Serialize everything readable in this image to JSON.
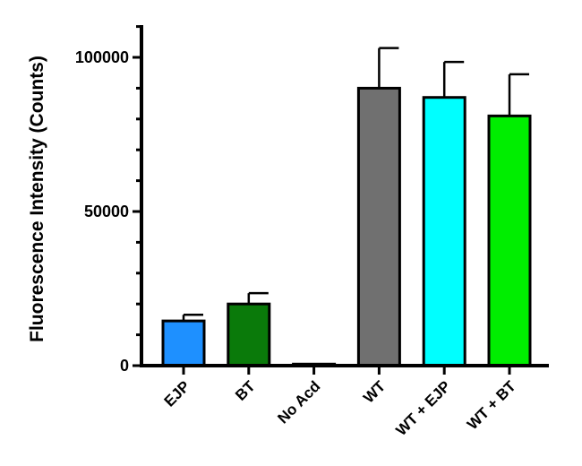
{
  "chart_data": {
    "type": "bar",
    "title": "",
    "xlabel": "",
    "ylabel": "Fluorescence Intensity (Counts)",
    "ylim": [
      0,
      110000
    ],
    "yticks": [
      0,
      50000,
      100000
    ],
    "ytick_labels": [
      "0",
      "50000",
      "100000"
    ],
    "grid": false,
    "legend": "none",
    "categories": [
      "EJP",
      "BT",
      "No Acd",
      "WT",
      "WT + EJP",
      "WT + BT"
    ],
    "values": [
      14500,
      20000,
      500,
      90000,
      87000,
      81000
    ],
    "error_upper": [
      2000,
      3500,
      0,
      13000,
      11500,
      13500
    ],
    "colors": [
      "#1e90ff",
      "#0a7a0a",
      "#ffffff",
      "#707070",
      "#00ffff",
      "#00ee00"
    ]
  }
}
